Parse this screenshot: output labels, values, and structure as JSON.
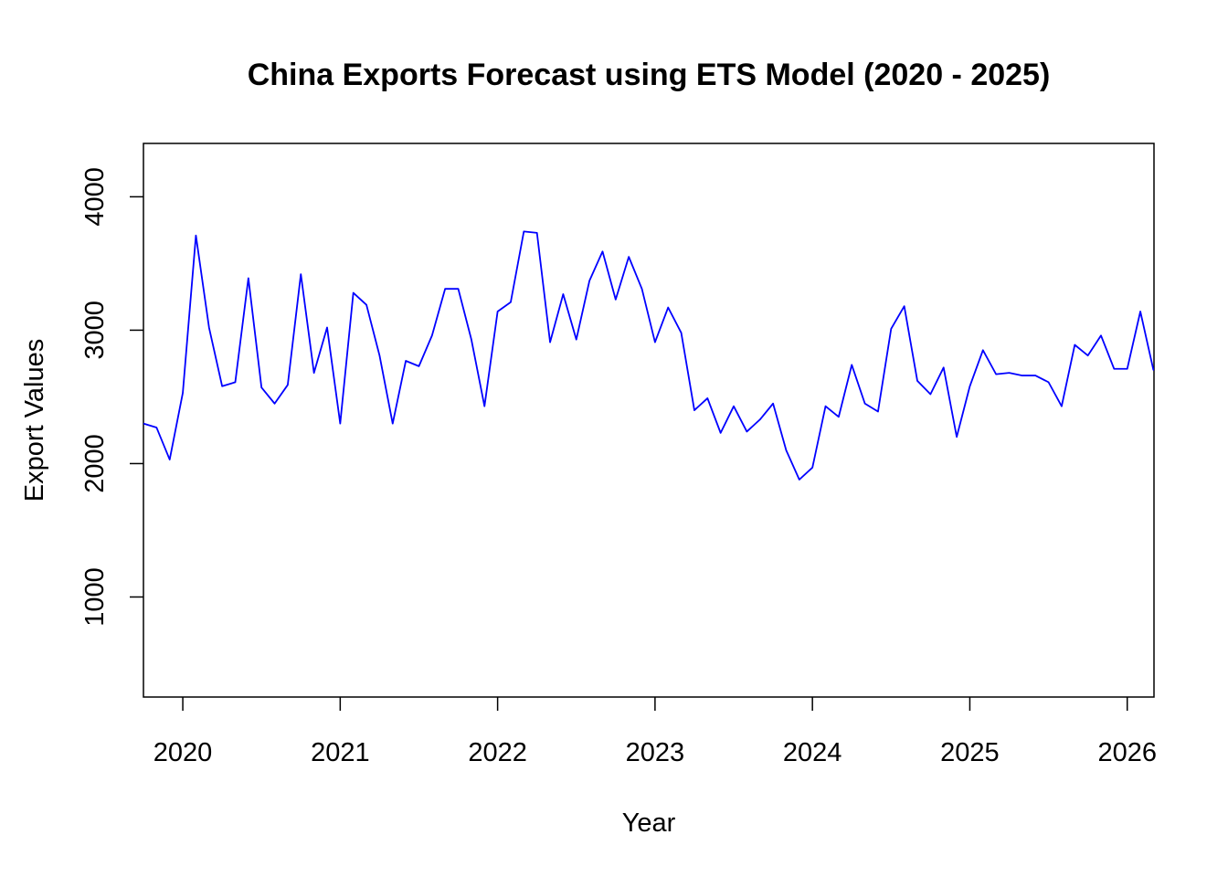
{
  "chart_data": {
    "type": "line",
    "title": "China Exports Forecast using ETS Model (2020 - 2025)",
    "xlabel": "Year",
    "ylabel": "Export Values",
    "xlim": [
      2019.75,
      2026.17
    ],
    "ylim": [
      250,
      4400
    ],
    "x_ticks": [
      "2020",
      "2021",
      "2022",
      "2023",
      "2024",
      "2025",
      "2026"
    ],
    "y_ticks": [
      "1000",
      "2000",
      "3000",
      "4000"
    ],
    "grid": false,
    "legend": "none",
    "series": [
      {
        "color": "#0000ff",
        "x_start": "2019-10",
        "x_step_months": 1,
        "values": [
          2300,
          2270,
          2030,
          2530,
          3710,
          3020,
          2580,
          2610,
          3390,
          2570,
          2450,
          2590,
          3420,
          2680,
          3020,
          2300,
          3280,
          3190,
          2810,
          2300,
          2770,
          2730,
          2960,
          3310,
          3310,
          2930,
          2430,
          3140,
          3210,
          3740,
          3730,
          2910,
          3270,
          2930,
          3370,
          3590,
          3230,
          3550,
          3310,
          2910,
          3170,
          2980,
          2400,
          2490,
          2230,
          2430,
          2240,
          2330,
          2450,
          2100,
          1880,
          1970,
          2430,
          2350,
          2740,
          2450,
          2390,
          3010,
          3180,
          2620,
          2520,
          2720,
          2200,
          2580,
          2850,
          2670,
          2680,
          2660,
          2660,
          2610,
          2430,
          2890,
          2810,
          2960,
          2710,
          2710,
          3140,
          2700
        ]
      }
    ]
  }
}
